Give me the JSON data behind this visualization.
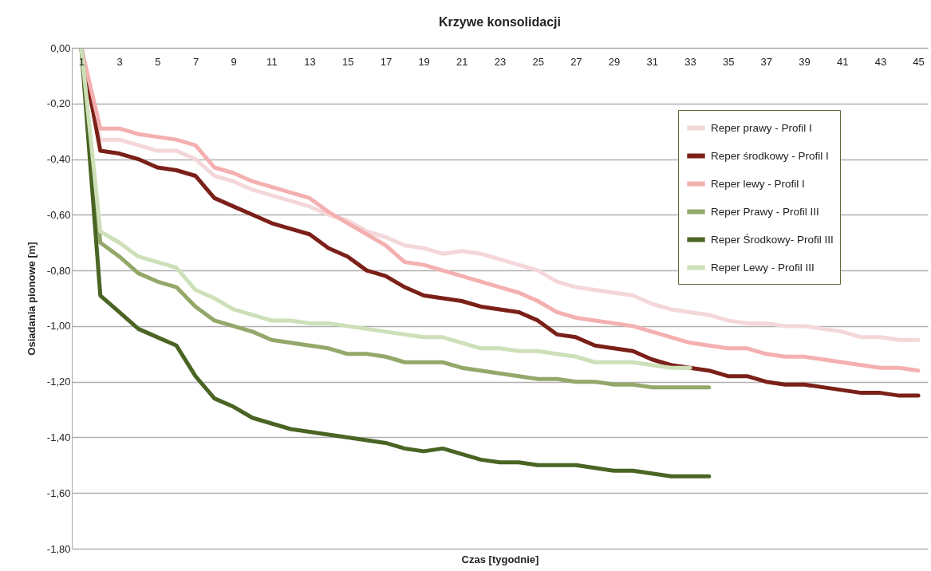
{
  "chart_data": {
    "type": "line",
    "title": "Krzywe konsolidacji",
    "xlabel": "Czas [tygodnie]",
    "ylabel": "Osiadania pionowe [m]",
    "x": [
      1,
      2,
      3,
      4,
      5,
      6,
      7,
      8,
      9,
      10,
      11,
      12,
      13,
      14,
      15,
      16,
      17,
      18,
      19,
      20,
      21,
      22,
      23,
      24,
      25,
      26,
      27,
      28,
      29,
      30,
      31,
      32,
      33,
      34,
      35,
      36,
      37,
      38,
      39,
      40,
      41,
      42,
      43,
      44,
      45
    ],
    "xlim": [
      0.5,
      45.5
    ],
    "xticks": [
      1,
      3,
      5,
      7,
      9,
      11,
      13,
      15,
      17,
      19,
      21,
      23,
      25,
      27,
      29,
      31,
      33,
      35,
      37,
      39,
      41,
      43,
      45
    ],
    "ylim": [
      -1.8,
      0
    ],
    "yticks": [
      {
        "value": 0,
        "label": "0,00"
      },
      {
        "value": -0.2,
        "label": "-0,20"
      },
      {
        "value": -0.4,
        "label": "-0,40"
      },
      {
        "value": -0.6,
        "label": "-0,60"
      },
      {
        "value": -0.8,
        "label": "-0,80"
      },
      {
        "value": -1.0,
        "label": "-1,00"
      },
      {
        "value": -1.2,
        "label": "-1,20"
      },
      {
        "value": -1.4,
        "label": "-1,40"
      },
      {
        "value": -1.6,
        "label": "-1,60"
      },
      {
        "value": -1.8,
        "label": "-1,80"
      }
    ],
    "grid": "y",
    "legend": "top right",
    "line_style": "solid",
    "series": [
      {
        "name": "Reper prawy - Profil I",
        "color": "#f4d7da",
        "values": [
          0,
          -0.33,
          -0.33,
          -0.35,
          -0.37,
          -0.37,
          -0.4,
          -0.46,
          -0.48,
          -0.51,
          -0.53,
          -0.55,
          -0.57,
          -0.6,
          -0.62,
          -0.66,
          -0.68,
          -0.71,
          -0.72,
          -0.74,
          -0.73,
          -0.74,
          -0.76,
          -0.78,
          -0.8,
          -0.84,
          -0.86,
          -0.87,
          -0.88,
          -0.89,
          -0.92,
          -0.94,
          -0.95,
          -0.96,
          -0.98,
          -0.99,
          -0.99,
          -1.0,
          -1.0,
          -1.01,
          -1.02,
          -1.04,
          -1.04,
          -1.05,
          -1.05
        ]
      },
      {
        "name": "Reper środkowy - Profil I",
        "color": "#7b2018",
        "values": [
          0,
          -0.37,
          -0.38,
          -0.4,
          -0.43,
          -0.44,
          -0.46,
          -0.54,
          -0.57,
          -0.6,
          -0.63,
          -0.65,
          -0.67,
          -0.72,
          -0.75,
          -0.8,
          -0.82,
          -0.86,
          -0.89,
          -0.9,
          -0.91,
          -0.93,
          -0.94,
          -0.95,
          -0.98,
          -1.03,
          -1.04,
          -1.07,
          -1.08,
          -1.09,
          -1.12,
          -1.14,
          -1.15,
          -1.16,
          -1.18,
          -1.18,
          -1.2,
          -1.21,
          -1.21,
          -1.22,
          -1.23,
          -1.24,
          -1.24,
          -1.25,
          -1.25
        ]
      },
      {
        "name": "Reper lewy - Profil I",
        "color": "#f4b0b0",
        "values": [
          0,
          -0.29,
          -0.29,
          -0.31,
          -0.32,
          -0.33,
          -0.35,
          -0.43,
          -0.45,
          -0.48,
          -0.5,
          -0.52,
          -0.54,
          -0.59,
          -0.63,
          -0.67,
          -0.71,
          -0.77,
          -0.78,
          -0.8,
          -0.82,
          -0.84,
          -0.86,
          -0.88,
          -0.91,
          -0.95,
          -0.97,
          -0.98,
          -0.99,
          -1.0,
          -1.02,
          -1.04,
          -1.06,
          -1.07,
          -1.08,
          -1.08,
          -1.1,
          -1.11,
          -1.11,
          -1.12,
          -1.13,
          -1.14,
          -1.15,
          -1.15,
          -1.16
        ]
      },
      {
        "name": "Reper Prawy - Profil III",
        "color": "#93a86a",
        "values": [
          0,
          -0.7,
          -0.75,
          -0.81,
          -0.84,
          -0.86,
          -0.93,
          -0.98,
          -1.0,
          -1.02,
          -1.05,
          -1.06,
          -1.07,
          -1.08,
          -1.1,
          -1.1,
          -1.11,
          -1.13,
          -1.13,
          -1.13,
          -1.15,
          -1.16,
          -1.17,
          -1.18,
          -1.19,
          -1.19,
          -1.2,
          -1.2,
          -1.21,
          -1.21,
          -1.22,
          -1.22,
          -1.22,
          -1.22,
          null,
          null,
          null,
          null,
          null,
          null,
          null,
          null,
          null,
          null,
          null
        ]
      },
      {
        "name": "Reper Środkowy- Profil III",
        "color": "#4a6424",
        "values": [
          0,
          -0.89,
          -0.95,
          -1.01,
          -1.04,
          -1.07,
          -1.18,
          -1.26,
          -1.29,
          -1.33,
          -1.35,
          -1.37,
          -1.38,
          -1.39,
          -1.4,
          -1.41,
          -1.42,
          -1.44,
          -1.45,
          -1.44,
          -1.46,
          -1.48,
          -1.49,
          -1.49,
          -1.5,
          -1.5,
          -1.5,
          -1.51,
          -1.52,
          -1.52,
          -1.53,
          -1.54,
          -1.54,
          -1.54,
          null,
          null,
          null,
          null,
          null,
          null,
          null,
          null,
          null,
          null,
          null
        ]
      },
      {
        "name": "Reper Lewy - Profil III",
        "color": "#cde0b8",
        "values": [
          0,
          -0.66,
          -0.7,
          -0.75,
          -0.77,
          -0.79,
          -0.87,
          -0.9,
          -0.94,
          -0.96,
          -0.98,
          -0.98,
          -0.99,
          -0.99,
          -1.0,
          -1.01,
          -1.02,
          -1.03,
          -1.04,
          -1.04,
          -1.06,
          -1.08,
          -1.08,
          -1.09,
          -1.09,
          -1.1,
          -1.11,
          -1.13,
          -1.13,
          -1.13,
          -1.14,
          -1.15,
          -1.15,
          null,
          null,
          null,
          null,
          null,
          null,
          null,
          null,
          null,
          null,
          null,
          null
        ]
      }
    ]
  }
}
